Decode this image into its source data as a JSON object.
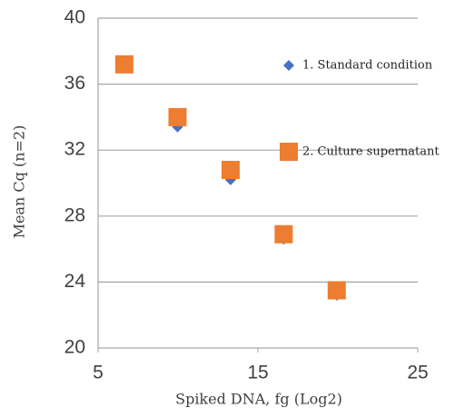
{
  "chart_data": {
    "type": "scatter",
    "x_label": "Spiked DNA, fg (Log2)",
    "y_label": "Mean Cq (n=2)",
    "xlim": [
      5,
      25
    ],
    "xticks": [
      5,
      15,
      25
    ],
    "ylim": [
      20,
      40
    ],
    "yticks": [
      20,
      24,
      28,
      32,
      36,
      40
    ],
    "grid": true,
    "legend": "right",
    "series": [
      {
        "name": "1. Standard condition",
        "color": "#4472c4",
        "marker": "diamond",
        "x": [
          6.64,
          9.97,
          13.29,
          16.61,
          19.93
        ],
        "values": [
          37.0,
          33.4,
          30.2,
          26.6,
          23.2
        ]
      },
      {
        "name": "2. Culture supernatant",
        "color": "#ed7d31",
        "marker": "square",
        "x": [
          6.64,
          9.97,
          13.29,
          16.61,
          19.93
        ],
        "values": [
          37.2,
          34.0,
          30.8,
          26.9,
          23.5
        ]
      }
    ]
  }
}
